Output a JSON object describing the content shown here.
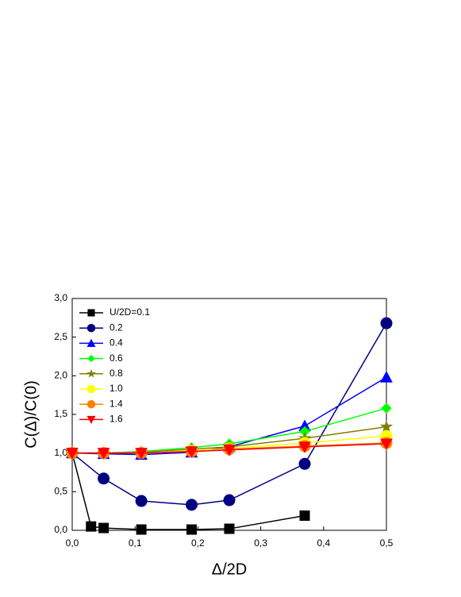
{
  "chart_data": {
    "type": "line",
    "x_label": "Δ/2D",
    "y_label": "C(Δ)/C(0)",
    "xlim": [
      0,
      0.5
    ],
    "ylim": [
      0,
      3
    ],
    "xticks": [
      {
        "value": 0,
        "label": "0,0"
      },
      {
        "value": 0.1,
        "label": "0,1"
      },
      {
        "value": 0.2,
        "label": "0,2"
      },
      {
        "value": 0.3,
        "label": "0,3"
      },
      {
        "value": 0.4,
        "label": "0,4"
      },
      {
        "value": 0.5,
        "label": "0,5"
      }
    ],
    "yticks": [
      {
        "value": 0,
        "label": "0,0"
      },
      {
        "value": 0.5,
        "label": "0,5"
      },
      {
        "value": 1,
        "label": "1,0"
      },
      {
        "value": 1.5,
        "label": "1,5"
      },
      {
        "value": 2,
        "label": "2,0"
      },
      {
        "value": 2.5,
        "label": "2,5"
      },
      {
        "value": 3,
        "label": "3,0"
      }
    ],
    "legend": "upper-left",
    "series": [
      {
        "name": "U/2D=0.1",
        "color": "#000000",
        "marker": "square",
        "x": [
          0,
          0.03,
          0.05,
          0.11,
          0.19,
          0.25,
          0.37
        ],
        "values": [
          1.0,
          0.05,
          0.03,
          0.01,
          0.01,
          0.02,
          0.19
        ]
      },
      {
        "name": "0.2",
        "color": "#000080",
        "marker": "circle",
        "x": [
          0,
          0.05,
          0.11,
          0.19,
          0.25,
          0.37,
          0.5
        ],
        "values": [
          1.0,
          0.67,
          0.38,
          0.33,
          0.39,
          0.86,
          2.68
        ]
      },
      {
        "name": "0.4",
        "color": "#0000ff",
        "marker": "triangle-up",
        "x": [
          0,
          0.05,
          0.11,
          0.19,
          0.25,
          0.37,
          0.5
        ],
        "values": [
          1.0,
          0.99,
          0.98,
          1.01,
          1.08,
          1.35,
          1.98
        ]
      },
      {
        "name": "0.6",
        "color": "#00ff00",
        "marker": "diamond",
        "x": [
          0,
          0.05,
          0.11,
          0.19,
          0.25,
          0.37,
          0.5
        ],
        "values": [
          1.0,
          1.0,
          1.02,
          1.07,
          1.12,
          1.28,
          1.58
        ]
      },
      {
        "name": "0.8",
        "color": "#808000",
        "marker": "star",
        "x": [
          0,
          0.05,
          0.11,
          0.19,
          0.25,
          0.37,
          0.5
        ],
        "values": [
          1.0,
          1.0,
          1.01,
          1.05,
          1.08,
          1.19,
          1.34
        ]
      },
      {
        "name": "1.0",
        "color": "#ffff00",
        "marker": "circle",
        "x": [
          0,
          0.05,
          0.11,
          0.19,
          0.25,
          0.37,
          0.5
        ],
        "values": [
          1.0,
          1.0,
          1.0,
          1.03,
          1.06,
          1.13,
          1.22
        ]
      },
      {
        "name": "1.4",
        "color": "#ff8000",
        "marker": "circle",
        "x": [
          0,
          0.05,
          0.11,
          0.19,
          0.25,
          0.37,
          0.5
        ],
        "values": [
          1.0,
          1.0,
          1.0,
          1.02,
          1.05,
          1.09,
          1.13
        ]
      },
      {
        "name": "1.6",
        "color": "#ff0000",
        "marker": "triangle-down",
        "x": [
          0,
          0.05,
          0.11,
          0.19,
          0.25,
          0.37,
          0.5
        ],
        "values": [
          1.0,
          1.0,
          1.0,
          1.02,
          1.04,
          1.08,
          1.12
        ]
      }
    ]
  }
}
